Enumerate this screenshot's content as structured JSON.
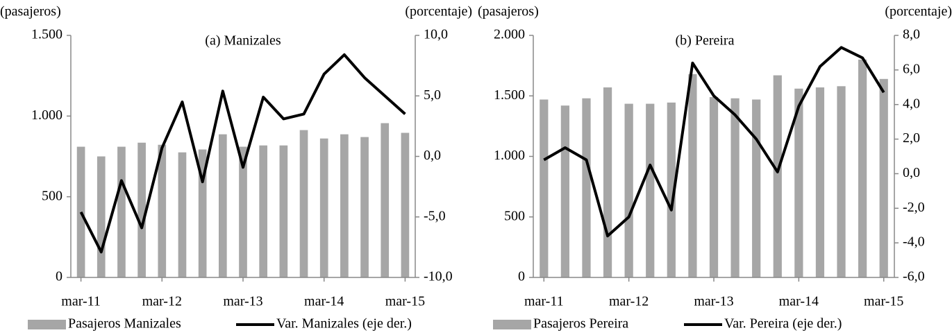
{
  "chart_data": [
    {
      "type": "bar",
      "title": "(a) Manizales",
      "ylabel": "(pasajeros)",
      "y2label": "(porcentaje)",
      "categories": [
        "mar-11",
        null,
        null,
        null,
        "mar-12",
        null,
        null,
        null,
        "mar-13",
        null,
        null,
        null,
        "mar-14",
        null,
        null,
        null,
        "mar-15"
      ],
      "series": [
        {
          "name": "Pasajeros Manizales",
          "type": "bar",
          "color": "#a6a6a6",
          "values": [
            810,
            750,
            810,
            835,
            822,
            775,
            793,
            887,
            810,
            818,
            818,
            913,
            861,
            887,
            870,
            956,
            896
          ]
        },
        {
          "name": "Var. Manizales (eje der.)",
          "type": "line",
          "axis": "y2",
          "color": "#000000",
          "values": [
            -4.6,
            -7.9,
            -2.0,
            -5.9,
            0.7,
            4.5,
            -2.1,
            5.4,
            -0.9,
            4.9,
            3.1,
            3.5,
            6.8,
            8.4,
            6.5,
            5.0,
            3.5
          ]
        }
      ],
      "ylim": [
        0,
        1500
      ],
      "yticks": [
        0,
        500,
        {
          "value": 1000,
          "label": "1.000"
        },
        {
          "value": 1500,
          "label": "1.500"
        }
      ],
      "y2lim": [
        -10,
        10
      ],
      "y2ticks": [
        {
          "value": -10,
          "label": "-10,0"
        },
        {
          "value": -5,
          "label": "-5,0"
        },
        {
          "value": 0,
          "label": "0,0"
        },
        {
          "value": 5,
          "label": "5,0"
        },
        {
          "value": 10,
          "label": "10,0"
        }
      ],
      "legend": "bottom"
    },
    {
      "type": "bar",
      "title": "(b) Pereira",
      "ylabel": "(pasajeros)",
      "y2label": "(porcentaje)",
      "categories": [
        "mar-11",
        null,
        null,
        null,
        "mar-12",
        null,
        null,
        null,
        "mar-13",
        null,
        null,
        null,
        "mar-14",
        null,
        null,
        null,
        "mar-15"
      ],
      "series": [
        {
          "name": "Pasajeros Pereira",
          "type": "bar",
          "color": "#a6a6a6",
          "values": [
            1470,
            1420,
            1480,
            1570,
            1435,
            1435,
            1445,
            1680,
            1490,
            1480,
            1470,
            1670,
            1560,
            1570,
            1580,
            1800,
            1640
          ]
        },
        {
          "name": "Var. Pereira (eje der.)",
          "type": "line",
          "axis": "y2",
          "color": "#000000",
          "values": [
            0.8,
            1.5,
            0.8,
            -3.6,
            -2.5,
            0.5,
            -2.1,
            6.4,
            4.5,
            3.4,
            2.0,
            0.1,
            3.9,
            6.2,
            7.3,
            6.7,
            4.7
          ]
        }
      ],
      "ylim": [
        0,
        2000
      ],
      "yticks": [
        0,
        500,
        {
          "value": 1000,
          "label": "1.000"
        },
        {
          "value": 1500,
          "label": "1.500"
        },
        {
          "value": 2000,
          "label": "2.000"
        }
      ],
      "y2lim": [
        -6,
        8
      ],
      "y2ticks": [
        {
          "value": -6,
          "label": "-6,0"
        },
        {
          "value": -4,
          "label": "-4,0"
        },
        {
          "value": -2,
          "label": "-2,0"
        },
        {
          "value": 0,
          "label": "0,0"
        },
        {
          "value": 2,
          "label": "2,0"
        },
        {
          "value": 4,
          "label": "4,0"
        },
        {
          "value": 6,
          "label": "6,0"
        },
        {
          "value": 8,
          "label": "8,0"
        }
      ],
      "legend": "bottom"
    }
  ]
}
